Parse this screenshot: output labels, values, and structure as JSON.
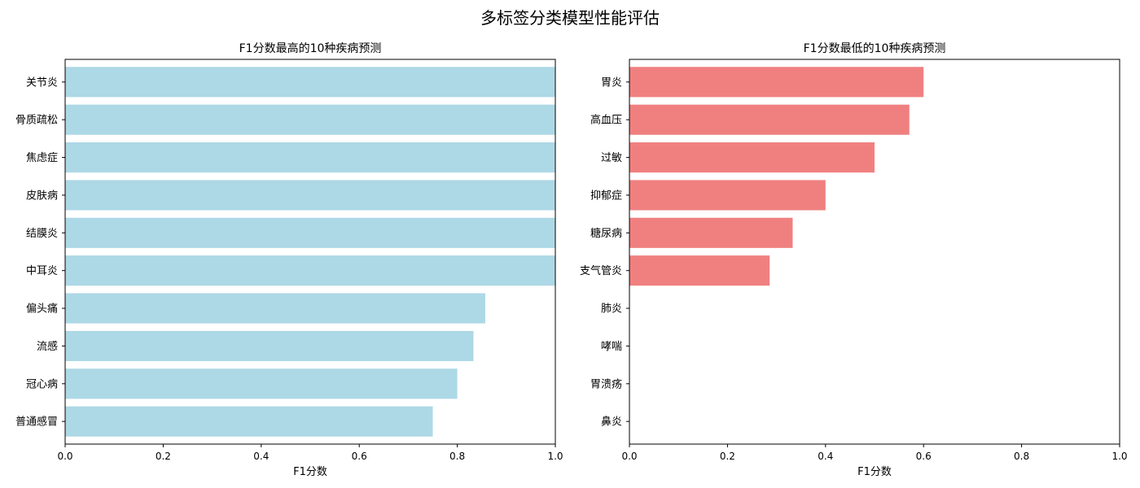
{
  "figure": {
    "suptitle": "多标签分类模型性能评估"
  },
  "chart_data": [
    {
      "type": "bar",
      "orientation": "horizontal",
      "title": "F1分数最高的10种疾病预测",
      "xlabel": "F1分数",
      "ylabel": "",
      "xlim": [
        0,
        1.0
      ],
      "xticks": [
        "0.0",
        "0.2",
        "0.4",
        "0.6",
        "0.8",
        "1.0"
      ],
      "categories": [
        "关节炎",
        "骨质疏松",
        "焦虑症",
        "皮肤病",
        "结膜炎",
        "中耳炎",
        "偏头痛",
        "流感",
        "冠心病",
        "普通感冒"
      ],
      "values": [
        1.0,
        1.0,
        1.0,
        1.0,
        1.0,
        1.0,
        0.857,
        0.833,
        0.8,
        0.75
      ],
      "color": "#add8e6",
      "grid": false
    },
    {
      "type": "bar",
      "orientation": "horizontal",
      "title": "F1分数最低的10种疾病预测",
      "xlabel": "F1分数",
      "ylabel": "",
      "xlim": [
        0,
        1.0
      ],
      "xticks": [
        "0.0",
        "0.2",
        "0.4",
        "0.6",
        "0.8",
        "1.0"
      ],
      "categories": [
        "胃炎",
        "高血压",
        "过敏",
        "抑郁症",
        "糖尿病",
        "支气管炎",
        "肺炎",
        "哮喘",
        "胃溃疡",
        "鼻炎"
      ],
      "values": [
        0.6,
        0.571,
        0.5,
        0.4,
        0.333,
        0.286,
        0,
        0,
        0,
        0
      ],
      "color": "#f08080",
      "grid": false
    }
  ]
}
